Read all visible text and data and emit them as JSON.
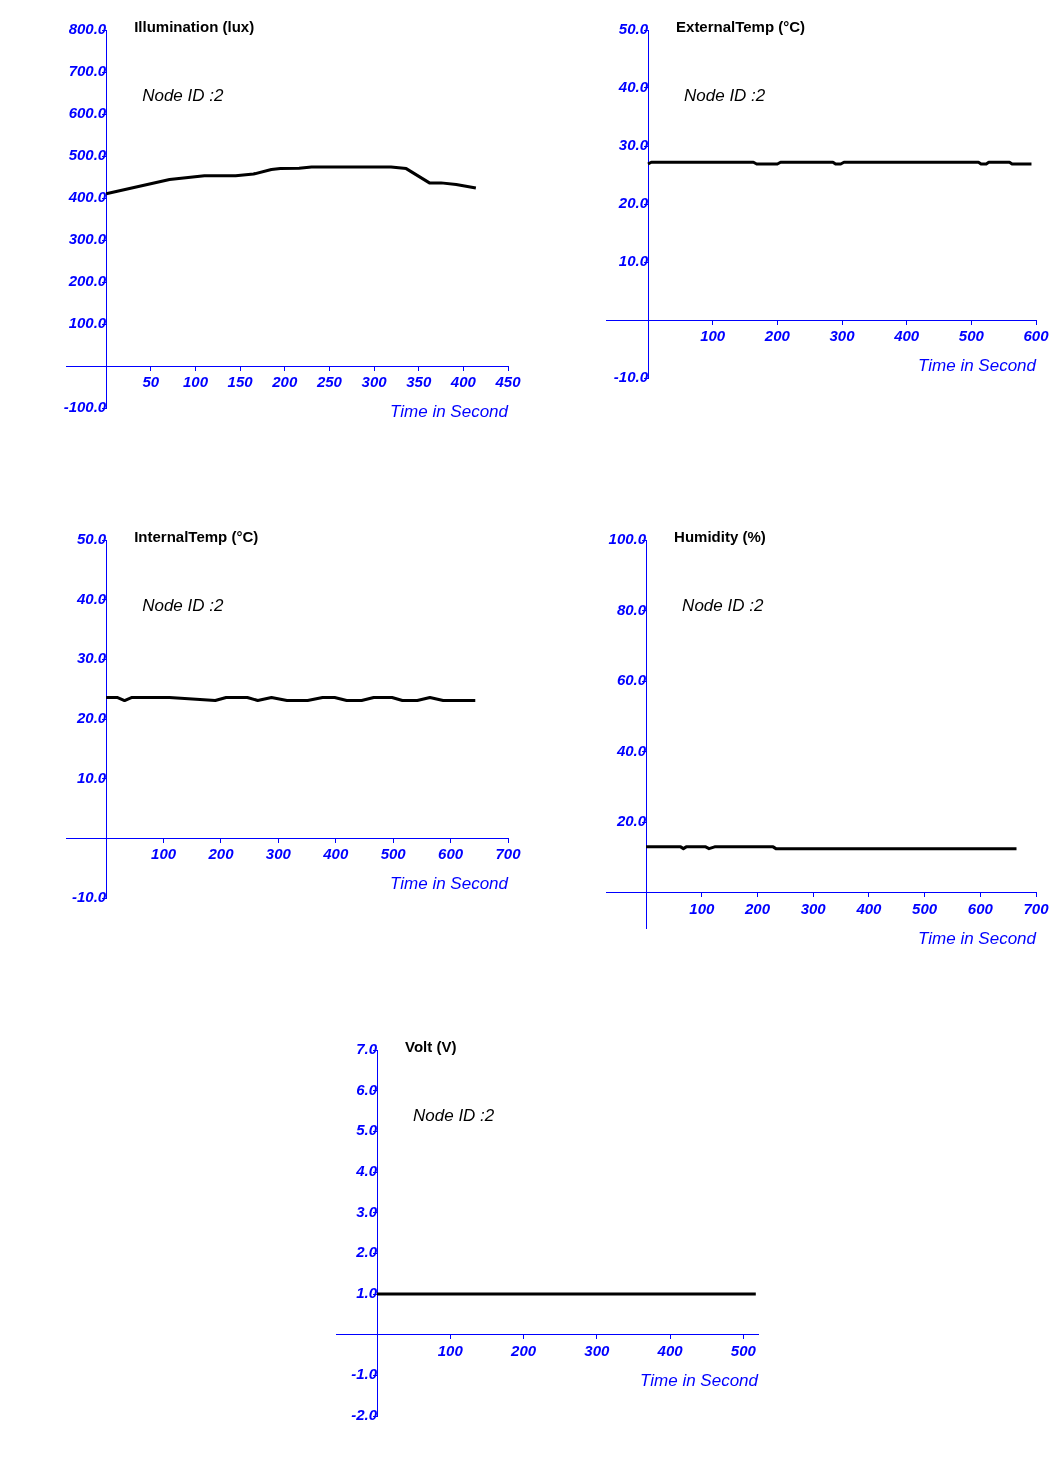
{
  "chart_data": [
    {
      "type": "line",
      "title": "Illumination (lux)",
      "xlabel": "Time in Second",
      "annotations": [
        "Node ID :2"
      ],
      "grid": false,
      "legend": false,
      "marker": "none",
      "line_style": "solid",
      "xlim": [
        -45,
        450
      ],
      "ylim": [
        -100,
        800
      ],
      "xticks": [
        50,
        100,
        150,
        200,
        250,
        300,
        350,
        400,
        450
      ],
      "yticks": [
        {
          "value": 800,
          "label": "800.0"
        },
        {
          "value": 700,
          "label": "700.0"
        },
        {
          "value": 600,
          "label": "600.0"
        },
        {
          "value": 500,
          "label": "500.0"
        },
        {
          "value": 400,
          "label": "400.0"
        },
        {
          "value": 300,
          "label": "300.0"
        },
        {
          "value": 200,
          "label": "200.0"
        },
        {
          "value": 100,
          "label": "100.0"
        },
        {
          "value": -100,
          "label": "-100.0"
        }
      ],
      "x": [
        0,
        71,
        110,
        145,
        165,
        185,
        195,
        216,
        230,
        319,
        336,
        362,
        375,
        392,
        414
      ],
      "series": [
        {
          "color": "#000000",
          "values": [
            410,
            444,
            453,
            453,
            457,
            468,
            470,
            471,
            474,
            474,
            470,
            436,
            436,
            432,
            424
          ]
        }
      ]
    },
    {
      "type": "line",
      "title": "ExternalTemp (°C)",
      "xlabel": "Time in Second",
      "annotations": [
        "Node ID :2"
      ],
      "grid": false,
      "legend": false,
      "marker": "none",
      "line_style": "solid",
      "xlim": [
        -65,
        600
      ],
      "ylim": [
        -10,
        50
      ],
      "xticks": [
        100,
        200,
        300,
        400,
        500,
        600
      ],
      "yticks": [
        {
          "value": 50,
          "label": "50.0"
        },
        {
          "value": 40,
          "label": "40.0"
        },
        {
          "value": 30,
          "label": "30.0"
        },
        {
          "value": 20,
          "label": "20.0"
        },
        {
          "value": 10,
          "label": "10.0"
        },
        {
          "value": -10,
          "label": "-10.0"
        }
      ],
      "x": [
        0,
        5,
        163,
        168,
        200,
        205,
        286,
        290,
        298,
        303,
        511,
        515,
        523,
        527,
        559,
        563,
        593
      ],
      "series": [
        {
          "color": "#000000",
          "values": [
            26.9,
            27.2,
            27.2,
            26.9,
            26.9,
            27.2,
            27.2,
            26.9,
            26.9,
            27.2,
            27.2,
            26.9,
            26.9,
            27.2,
            27.2,
            26.9,
            26.9
          ]
        }
      ]
    },
    {
      "type": "line",
      "title": "InternalTemp (°C)",
      "xlabel": "Time in Second",
      "annotations": [
        "Node ID :2"
      ],
      "grid": false,
      "legend": false,
      "marker": "none",
      "line_style": "solid",
      "xlim": [
        -70,
        700
      ],
      "ylim": [
        -10,
        50
      ],
      "xticks": [
        100,
        200,
        300,
        400,
        500,
        600,
        700
      ],
      "yticks": [
        {
          "value": 50,
          "label": "50.0"
        },
        {
          "value": 40,
          "label": "40.0"
        },
        {
          "value": 30,
          "label": "30.0"
        },
        {
          "value": 20,
          "label": "20.0"
        },
        {
          "value": 10,
          "label": "10.0"
        },
        {
          "value": -10,
          "label": "-10.0"
        }
      ],
      "x": [
        0,
        20,
        32,
        44,
        110,
        190,
        209,
        246,
        264,
        288,
        315,
        351,
        377,
        398,
        419,
        445,
        466,
        498,
        516,
        542,
        564,
        587,
        643
      ],
      "series": [
        {
          "color": "#000000",
          "values": [
            23.6,
            23.6,
            23.1,
            23.6,
            23.6,
            23.1,
            23.6,
            23.6,
            23.1,
            23.6,
            23.1,
            23.1,
            23.6,
            23.6,
            23.1,
            23.1,
            23.6,
            23.6,
            23.1,
            23.1,
            23.6,
            23.1,
            23.1
          ]
        }
      ]
    },
    {
      "type": "line",
      "title": "Humidity (%)",
      "xlabel": "Time in Second",
      "annotations": [
        "Node ID :2"
      ],
      "grid": false,
      "legend": false,
      "marker": "none",
      "line_style": "solid",
      "xlim": [
        -72,
        700
      ],
      "ylim": [
        -10,
        100
      ],
      "xticks": [
        100,
        200,
        300,
        400,
        500,
        600,
        700
      ],
      "yticks": [
        {
          "value": 100,
          "label": "100.0"
        },
        {
          "value": 80,
          "label": "80.0"
        },
        {
          "value": 60,
          "label": "60.0"
        },
        {
          "value": 40,
          "label": "40.0"
        },
        {
          "value": 20,
          "label": "20.0"
        }
      ],
      "x": [
        0,
        62,
        67,
        72,
        107,
        113,
        123,
        228,
        233,
        665
      ],
      "series": [
        {
          "color": "#000000",
          "values": [
            13.0,
            13.0,
            12.5,
            13.0,
            13.0,
            12.5,
            13.0,
            13.0,
            12.5,
            12.5
          ]
        }
      ]
    },
    {
      "type": "line",
      "title": "Volt (V)",
      "xlabel": "Time in Second",
      "annotations": [
        "Node ID :2"
      ],
      "grid": false,
      "legend": false,
      "marker": "none",
      "line_style": "solid",
      "xlim": [
        -56,
        520
      ],
      "ylim": [
        -2,
        7
      ],
      "xticks": [
        100,
        200,
        300,
        400,
        500
      ],
      "yticks": [
        {
          "value": 7,
          "label": "7.0"
        },
        {
          "value": 6,
          "label": "6.0"
        },
        {
          "value": 5,
          "label": "5.0"
        },
        {
          "value": 4,
          "label": "4.0"
        },
        {
          "value": 3,
          "label": "3.0"
        },
        {
          "value": 2,
          "label": "2.0"
        },
        {
          "value": 1,
          "label": "1.0"
        },
        {
          "value": -1,
          "label": "-1.0"
        },
        {
          "value": -2,
          "label": "-2.0"
        }
      ],
      "x": [
        0,
        517
      ],
      "series": [
        {
          "color": "#000000",
          "values": [
            1.0,
            1.0
          ]
        }
      ]
    }
  ]
}
